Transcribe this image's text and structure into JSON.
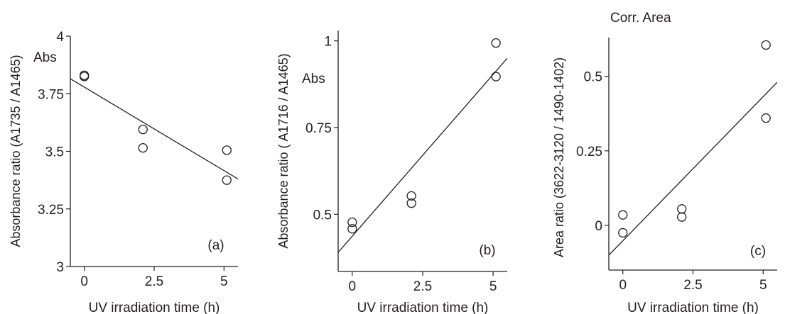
{
  "chart_data": [
    {
      "type": "scatter",
      "panel_label": "(a)",
      "ylabel": "Absorbance ratio (A1735 / A1465)",
      "y_annotation": "Abs",
      "y_annotation_secondary": "",
      "xlabel": "UV irradiation time (h)",
      "xlim": [
        -0.5,
        5.5
      ],
      "ylim": [
        3.0,
        4.0
      ],
      "xticks": [
        0,
        2.5,
        5
      ],
      "xtick_labels": [
        "0",
        "2.5",
        "5"
      ],
      "yticks": [
        3.0,
        3.25,
        3.5,
        3.75,
        4.0
      ],
      "ytick_labels": [
        "3",
        "3.25",
        "3.5",
        "3.75",
        "4"
      ],
      "grid": false,
      "points": [
        {
          "x": 0,
          "y": 3.83
        },
        {
          "x": 0,
          "y": 3.825
        },
        {
          "x": 2.1,
          "y": 3.595
        },
        {
          "x": 2.1,
          "y": 3.515
        },
        {
          "x": 5.1,
          "y": 3.505
        },
        {
          "x": 5.1,
          "y": 3.375
        }
      ],
      "fit_line": {
        "x": [
          -0.5,
          5.5
        ],
        "y": [
          3.815,
          3.38
        ]
      }
    },
    {
      "type": "scatter",
      "panel_label": "(b)",
      "ylabel": "Absorbance ratio ( A1716 / A1465)",
      "y_annotation": "Abs",
      "y_annotation_secondary": "",
      "xlabel": "UV irradiation time (h)",
      "xlim": [
        -0.5,
        5.5
      ],
      "ylim": [
        0.335,
        1.03
      ],
      "xticks": [
        0,
        2.5,
        5
      ],
      "xtick_labels": [
        "0",
        "2.5",
        "5"
      ],
      "yticks": [
        0.5,
        0.75,
        1.0
      ],
      "ytick_labels": [
        "0.5",
        "0.75",
        "1"
      ],
      "grid": false,
      "points": [
        {
          "x": 0,
          "y": 0.477
        },
        {
          "x": 0,
          "y": 0.458
        },
        {
          "x": 2.1,
          "y": 0.553
        },
        {
          "x": 2.1,
          "y": 0.532
        },
        {
          "x": 5.1,
          "y": 0.994
        },
        {
          "x": 5.1,
          "y": 0.897
        }
      ],
      "fit_line": {
        "x": [
          -0.5,
          5.5
        ],
        "y": [
          0.39,
          0.95
        ]
      }
    },
    {
      "type": "scatter",
      "panel_label": "(c)",
      "ylabel": "Area ratio (3622-3120 / 1490-1402)",
      "y_annotation": "",
      "y_annotation_secondary": "Corr. Area",
      "xlabel": "UV irradiation time (h)",
      "xlim": [
        -0.5,
        5.5
      ],
      "ylim": [
        -0.15,
        0.63
      ],
      "xticks": [
        0,
        2.5,
        5
      ],
      "xtick_labels": [
        "0",
        "2.5",
        "5"
      ],
      "yticks": [
        0,
        0.25,
        0.5
      ],
      "ytick_labels": [
        "0",
        "0.25",
        "0.5"
      ],
      "grid": false,
      "points": [
        {
          "x": 0,
          "y": 0.035
        },
        {
          "x": 0,
          "y": -0.025
        },
        {
          "x": 2.1,
          "y": 0.055
        },
        {
          "x": 2.1,
          "y": 0.028
        },
        {
          "x": 5.1,
          "y": 0.605
        },
        {
          "x": 5.1,
          "y": 0.36
        }
      ],
      "fit_line": {
        "x": [
          -0.5,
          5.5
        ],
        "y": [
          -0.1,
          0.48
        ]
      }
    }
  ]
}
